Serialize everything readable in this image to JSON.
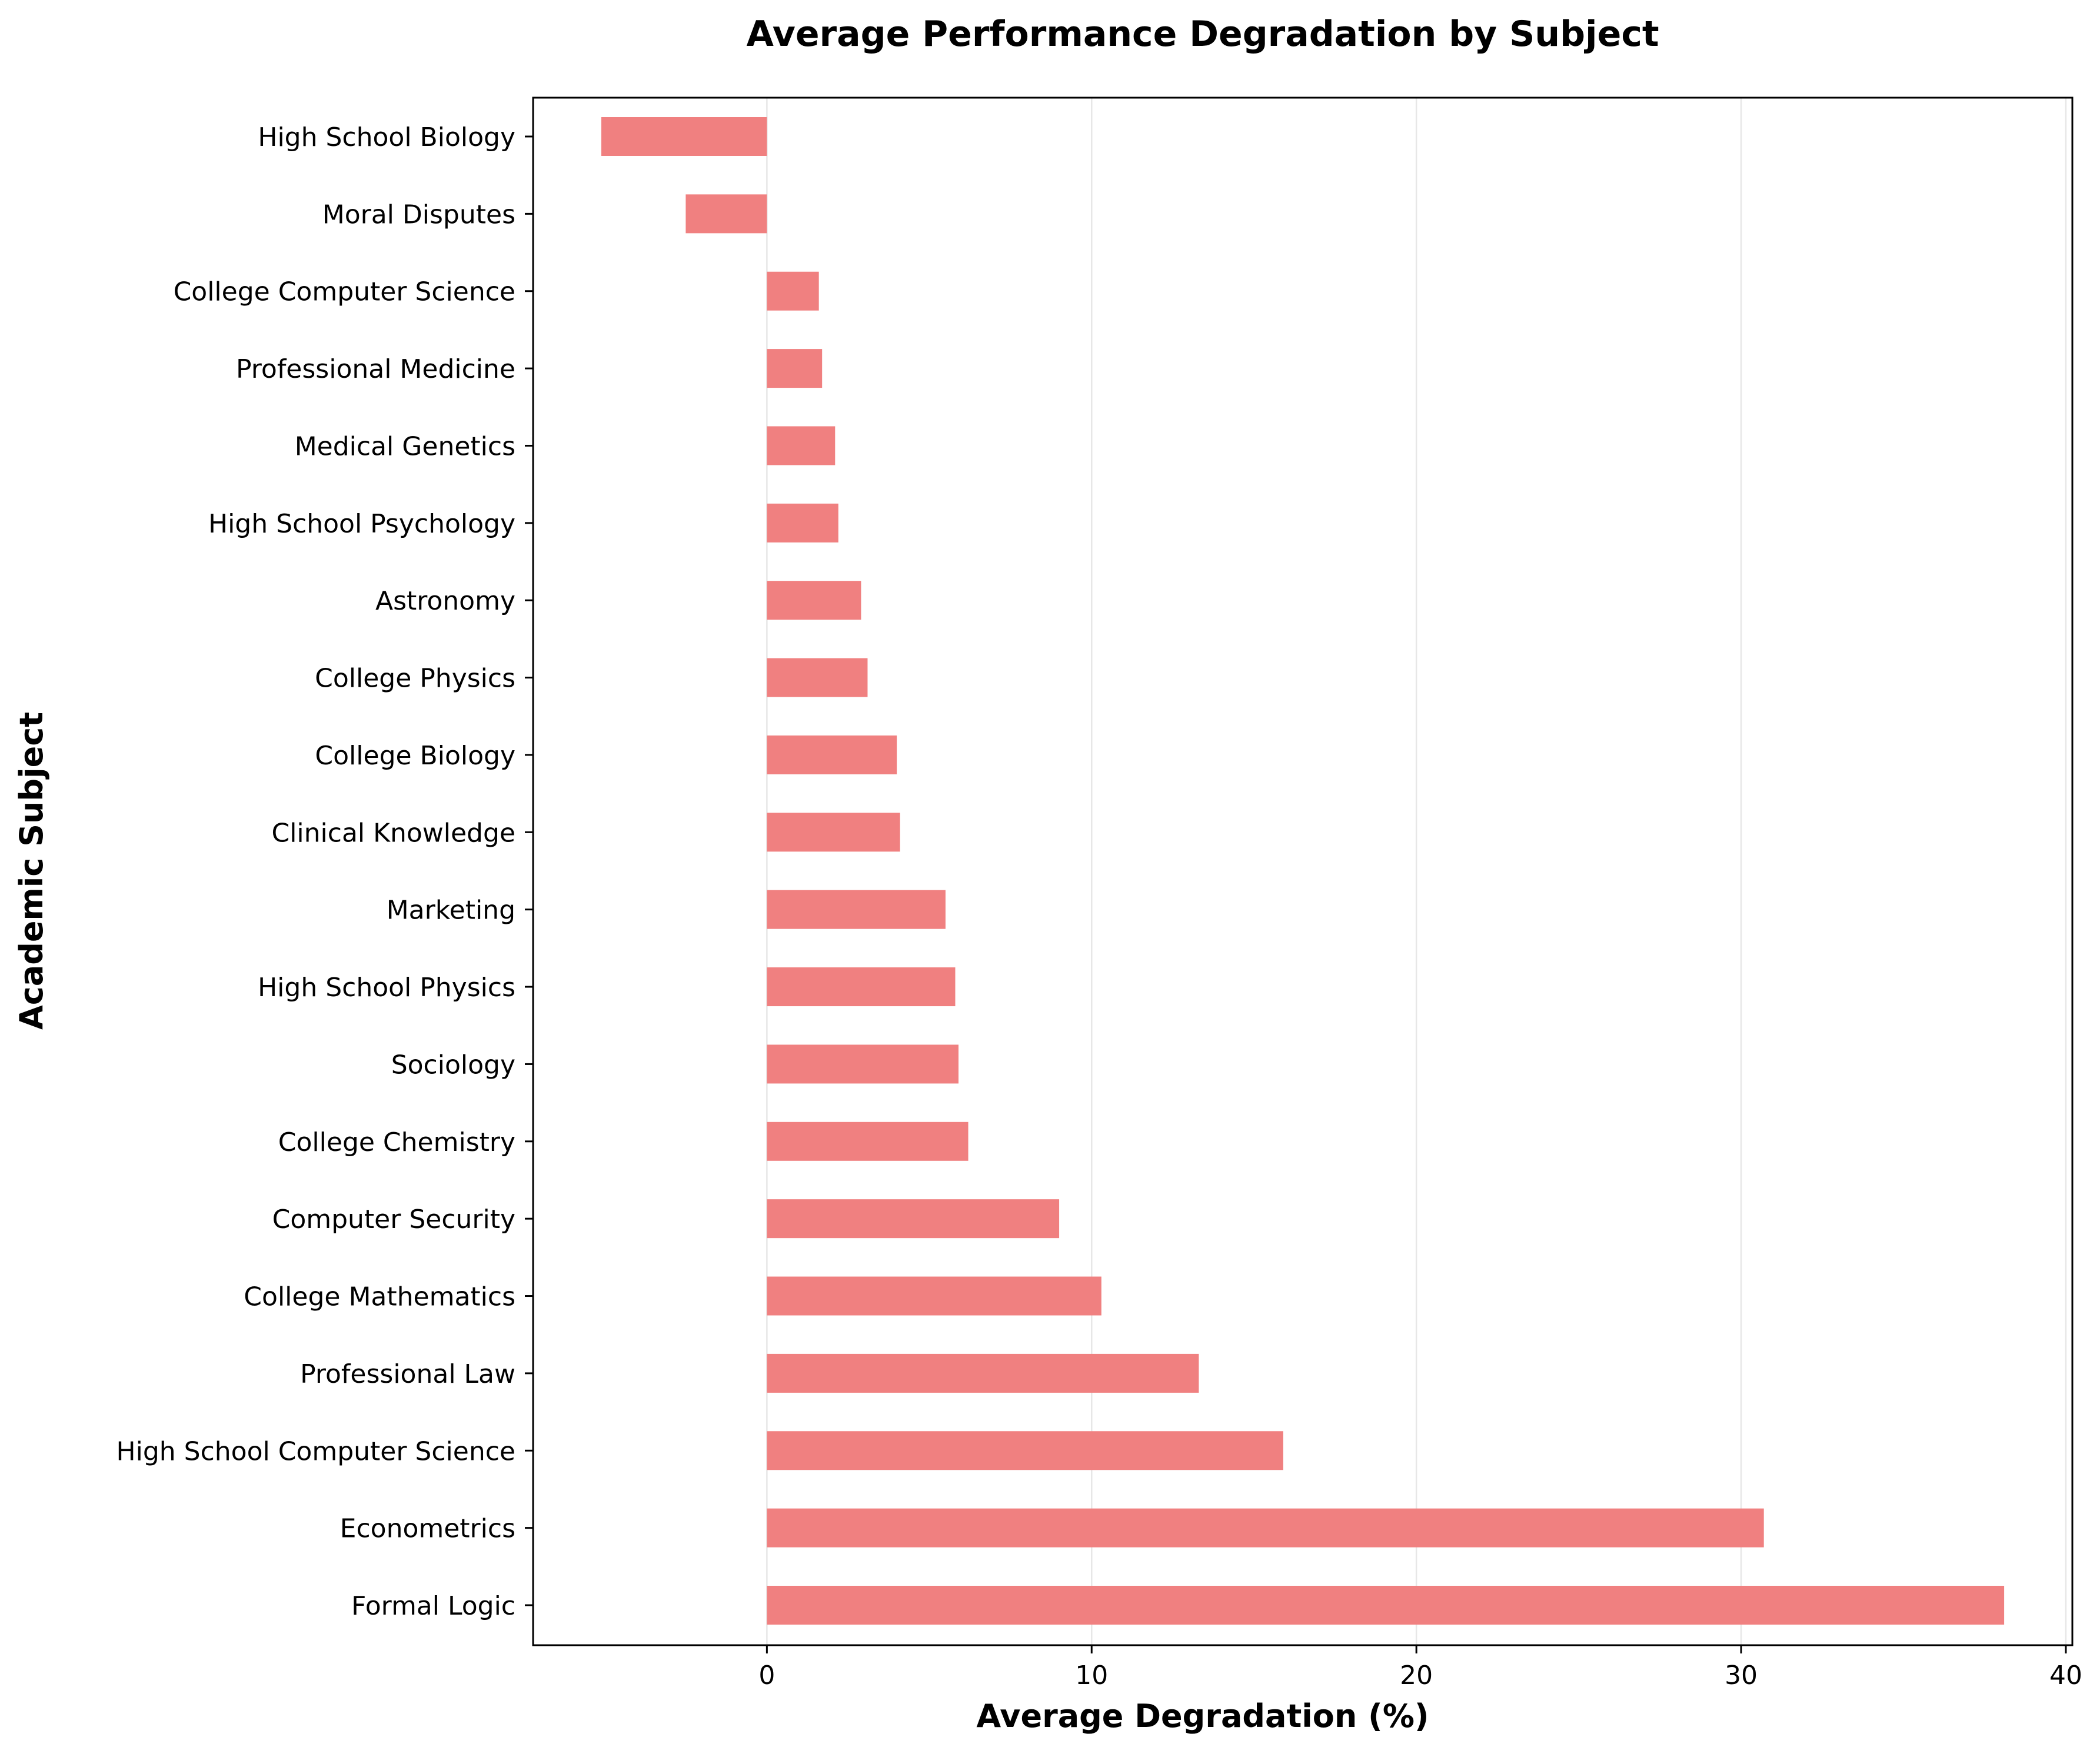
{
  "chart_data": {
    "type": "bar",
    "orientation": "horizontal",
    "title": "Average Performance Degradation by Subject",
    "xlabel": "Average Degradation (%)",
    "ylabel": "Academic Subject",
    "xlim": [
      -7.2,
      40.2
    ],
    "xticks": [
      0,
      10,
      20,
      30,
      40
    ],
    "grid": "vertical",
    "bar_color": "#f08080",
    "categories": [
      "High School Biology",
      "Moral Disputes",
      "College Computer Science",
      "Professional Medicine",
      "Medical Genetics",
      "High School Psychology",
      "Astronomy",
      "College Physics",
      "College Biology",
      "Clinical Knowledge",
      "Marketing",
      "High School Physics",
      "Sociology",
      "College Chemistry",
      "Computer Security",
      "College Mathematics",
      "Professional Law",
      "High School Computer Science",
      "Econometrics",
      "Formal Logic"
    ],
    "values": [
      -5.1,
      -2.5,
      1.6,
      1.7,
      2.1,
      2.2,
      2.9,
      3.1,
      4.0,
      4.1,
      5.5,
      5.8,
      5.9,
      6.2,
      9.0,
      10.3,
      13.3,
      15.9,
      30.7,
      38.1
    ]
  }
}
